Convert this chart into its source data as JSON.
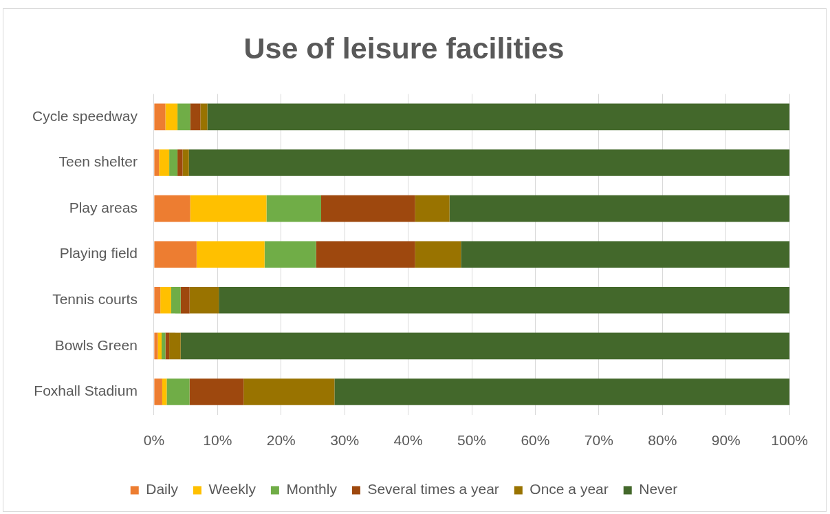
{
  "chart_data": {
    "type": "bar",
    "title": "Use of leisure facilities",
    "orientation": "horizontal",
    "stacked": true,
    "categories": [
      "Cycle speedway",
      "Teen shelter",
      "Play areas",
      "Playing field",
      "Tennis courts",
      "Bowls Green",
      "Foxhall Stadium"
    ],
    "series": [
      {
        "name": "Daily",
        "color": "#ed7d31",
        "values": [
          1.8,
          0.8,
          5.7,
          6.7,
          1.0,
          0.6,
          1.3
        ]
      },
      {
        "name": "Weekly",
        "color": "#ffc000",
        "values": [
          1.9,
          1.6,
          12.0,
          10.7,
          1.7,
          0.6,
          0.7
        ]
      },
      {
        "name": "Monthly",
        "color": "#70ad47",
        "values": [
          2.0,
          1.3,
          8.6,
          8.1,
          1.5,
          0.6,
          3.6
        ]
      },
      {
        "name": "Several times a year",
        "color": "#9e480e",
        "values": [
          1.6,
          0.8,
          14.8,
          15.6,
          1.4,
          0.6,
          8.5
        ]
      },
      {
        "name": "Once a year",
        "color": "#997300",
        "values": [
          1.1,
          1.0,
          5.4,
          7.2,
          4.6,
          1.8,
          14.3
        ]
      },
      {
        "name": "Never",
        "color": "#43682b",
        "values": [
          91.6,
          94.5,
          53.5,
          51.7,
          89.8,
          95.8,
          71.6
        ]
      }
    ],
    "xlim": [
      0,
      100
    ],
    "xticks": [
      {
        "value": 0,
        "label": "0%"
      },
      {
        "value": 10,
        "label": "10%"
      },
      {
        "value": 20,
        "label": "20%"
      },
      {
        "value": 30,
        "label": "30%"
      },
      {
        "value": 40,
        "label": "40%"
      },
      {
        "value": 50,
        "label": "50%"
      },
      {
        "value": 60,
        "label": "60%"
      },
      {
        "value": 70,
        "label": "70%"
      },
      {
        "value": 80,
        "label": "80%"
      },
      {
        "value": 90,
        "label": "90%"
      },
      {
        "value": 100,
        "label": "100%"
      }
    ],
    "grid": "x",
    "legend": "bottom"
  }
}
